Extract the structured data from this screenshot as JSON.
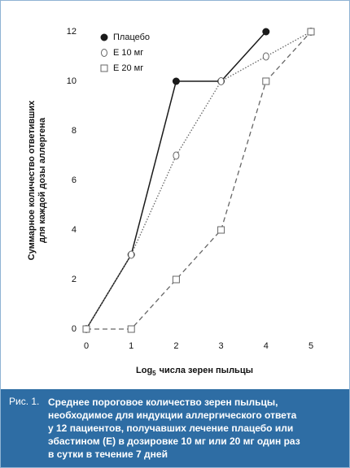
{
  "chart_data": {
    "type": "line",
    "y_label": [
      "Суммарное количество ответивших",
      "для каждой дозы аллергена"
    ],
    "x_label": {
      "base": "Log",
      "subscript": "5",
      "text": "числа зерен пыльцы"
    },
    "x": [
      0,
      1,
      2,
      3,
      4,
      5
    ],
    "series": [
      {
        "name": "Плацебо",
        "color": "#1a1a1a",
        "line_style": "solid",
        "marker": "circle-filled",
        "values": [
          0,
          3,
          10,
          10,
          12,
          null
        ]
      },
      {
        "name": "Е 10 мг",
        "color": "#666666",
        "line_style": "dotted",
        "marker": "circle-open",
        "values": [
          0,
          3,
          7,
          10,
          11,
          12
        ]
      },
      {
        "name": "Е 20 мг",
        "color": "#666666",
        "line_style": "dashed",
        "marker": "square-open",
        "values": [
          0,
          0,
          2,
          4,
          10,
          12
        ]
      }
    ],
    "xlim": [
      0,
      5
    ],
    "xticks": [
      0,
      1,
      2,
      3,
      4,
      5
    ],
    "ylim": [
      0,
      12
    ],
    "yticks": [
      0,
      2,
      4,
      6,
      8,
      10,
      12
    ],
    "legend": "top-left"
  },
  "caption": {
    "label": "Рис. 1.",
    "lines": [
      "Среднее пороговое количество зерен пыльцы,",
      "необходимое для индукции аллергического ответа",
      "у 12 пациентов, получавших лечение плацебо или",
      "эбастином (Е) в дозировке 10 мг или 20 мг один раз",
      "в сутки в течение 7 дней"
    ]
  }
}
